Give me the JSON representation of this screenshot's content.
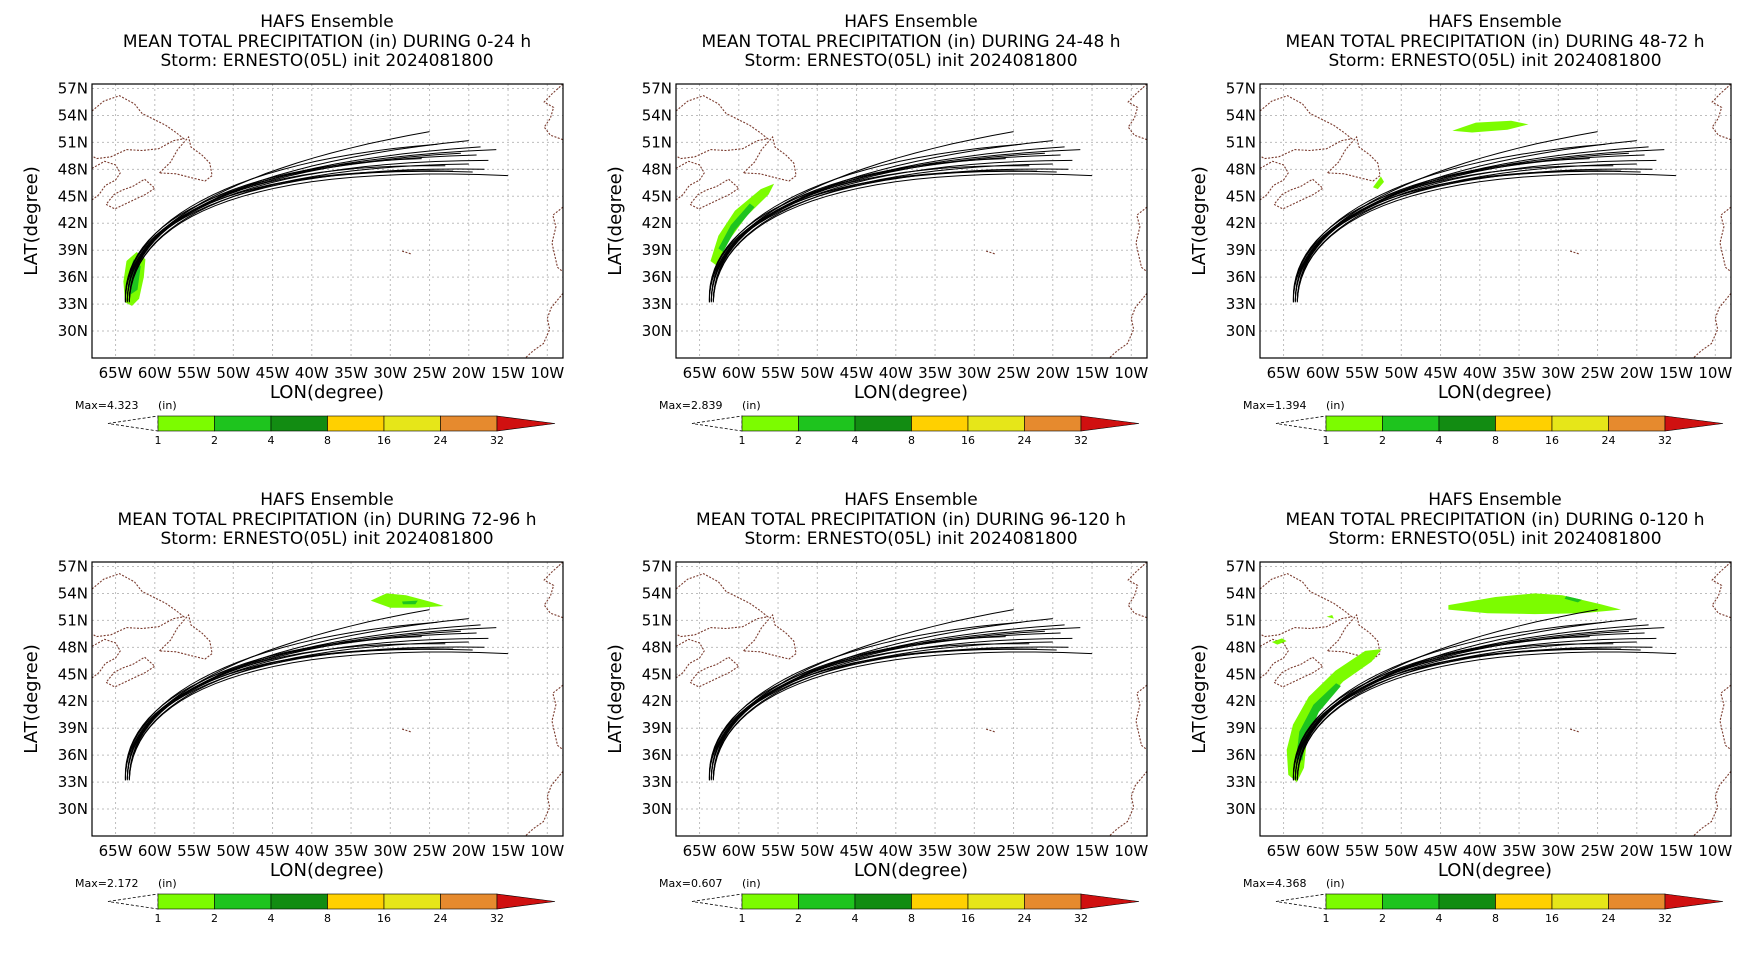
{
  "chart_data": [
    {
      "type": "map",
      "title": "HAFS Ensemble",
      "subtitle": "MEAN TOTAL PRECIPITATION (in) DURING  0-24 h",
      "storm_line": "Storm: ERNESTO(05L) init 2024081800",
      "xlabel": "LON(degree)",
      "ylabel": "LAT(degree)",
      "xlim": [
        -68,
        -8
      ],
      "ylim": [
        27,
        57.5
      ],
      "max_label": "Max=4.323",
      "unit_label": "(in)",
      "precip": [
        {
          "level": 1,
          "lonlat": [
            [
              -63.8,
              33.2
            ],
            [
              -64.0,
              35.5
            ],
            [
              -63.6,
              37.8
            ],
            [
              -62.3,
              38.8
            ],
            [
              -61.2,
              38.0
            ],
            [
              -61.4,
              36.0
            ],
            [
              -62.0,
              33.6
            ],
            [
              -62.9,
              32.8
            ]
          ]
        },
        {
          "level": 2,
          "lonlat": [
            [
              -63.2,
              34.0
            ],
            [
              -63.3,
              36.5
            ],
            [
              -62.7,
              38.0
            ],
            [
              -61.8,
              37.2
            ],
            [
              -62.2,
              34.6
            ]
          ]
        }
      ]
    },
    {
      "type": "map",
      "title": "HAFS Ensemble",
      "subtitle": "MEAN TOTAL PRECIPITATION (in) DURING 24-48 h",
      "storm_line": "Storm: ERNESTO(05L) init 2024081800",
      "xlabel": "LON(degree)",
      "ylabel": "LAT(degree)",
      "xlim": [
        -68,
        -8
      ],
      "ylim": [
        27,
        57.5
      ],
      "max_label": "Max=2.839",
      "unit_label": "(in)",
      "precip": [
        {
          "level": 1,
          "lonlat": [
            [
              -63.6,
              37.8
            ],
            [
              -62.6,
              40.6
            ],
            [
              -60.5,
              43.4
            ],
            [
              -57.2,
              45.8
            ],
            [
              -55.5,
              46.4
            ],
            [
              -56.2,
              45.2
            ],
            [
              -59.0,
              42.8
            ],
            [
              -61.5,
              39.8
            ],
            [
              -62.7,
              37.2
            ]
          ]
        },
        {
          "level": 2,
          "lonlat": [
            [
              -62.6,
              39.2
            ],
            [
              -61.0,
              41.8
            ],
            [
              -58.6,
              44.2
            ],
            [
              -58.0,
              43.8
            ],
            [
              -60.5,
              41.2
            ],
            [
              -62.0,
              38.8
            ]
          ]
        }
      ]
    },
    {
      "type": "map",
      "title": "HAFS Ensemble",
      "subtitle": "MEAN TOTAL PRECIPITATION (in) DURING 48-72 h",
      "storm_line": "Storm: ERNESTO(05L) init 2024081800",
      "xlabel": "LON(degree)",
      "ylabel": "LAT(degree)",
      "xlim": [
        -68,
        -8
      ],
      "ylim": [
        27,
        57.5
      ],
      "max_label": "Max=1.394",
      "unit_label": "(in)",
      "precip": [
        {
          "level": 1,
          "lonlat": [
            [
              -43.5,
              52.3
            ],
            [
              -40.5,
              53.2
            ],
            [
              -36.0,
              53.4
            ],
            [
              -33.8,
              53.0
            ],
            [
              -36.5,
              52.4
            ],
            [
              -41.0,
              52.1
            ]
          ]
        },
        {
          "level": 1,
          "lonlat": [
            [
              -53.6,
              46.0
            ],
            [
              -52.6,
              47.2
            ],
            [
              -52.2,
              46.6
            ],
            [
              -53.0,
              45.8
            ]
          ]
        }
      ]
    },
    {
      "type": "map",
      "title": "HAFS Ensemble",
      "subtitle": "MEAN TOTAL PRECIPITATION (in) DURING 72-96 h",
      "storm_line": "Storm: ERNESTO(05L) init 2024081800",
      "xlabel": "LON(degree)",
      "ylabel": "LAT(degree)",
      "xlim": [
        -68,
        -8
      ],
      "ylim": [
        27,
        57.5
      ],
      "max_label": "Max=2.172",
      "unit_label": "(in)",
      "precip": [
        {
          "level": 1,
          "lonlat": [
            [
              -32.5,
              53.2
            ],
            [
              -30.5,
              54.0
            ],
            [
              -28.0,
              53.8
            ],
            [
              -24.6,
              53.0
            ],
            [
              -23.2,
              52.6
            ],
            [
              -26.5,
              52.4
            ],
            [
              -30.0,
              52.4
            ]
          ]
        },
        {
          "level": 2,
          "lonlat": [
            [
              -28.5,
              53.1
            ],
            [
              -26.5,
              53.2
            ],
            [
              -26.8,
              52.8
            ],
            [
              -28.4,
              52.8
            ]
          ]
        }
      ]
    },
    {
      "type": "map",
      "title": "HAFS Ensemble",
      "subtitle": "MEAN TOTAL PRECIPITATION (in) DURING 96-120 h",
      "storm_line": "Storm: ERNESTO(05L) init 2024081800",
      "xlabel": "LON(degree)",
      "ylabel": "LAT(degree)",
      "xlim": [
        -68,
        -8
      ],
      "ylim": [
        27,
        57.5
      ],
      "max_label": "Max=0.607",
      "unit_label": "(in)",
      "precip": []
    },
    {
      "type": "map",
      "title": "HAFS Ensemble",
      "subtitle": "MEAN TOTAL PRECIPITATION (in) DURING 0-120 h",
      "storm_line": "Storm: ERNESTO(05L) init 2024081800",
      "xlabel": "LON(degree)",
      "ylabel": "LAT(degree)",
      "xlim": [
        -68,
        -8
      ],
      "ylim": [
        27,
        57.5
      ],
      "max_label": "Max=4.368",
      "unit_label": "(in)",
      "precip": [
        {
          "level": 1,
          "lonlat": [
            [
              -44.0,
              52.7
            ],
            [
              -38.0,
              53.6
            ],
            [
              -33.0,
              54.0
            ],
            [
              -29.5,
              53.8
            ],
            [
              -24.6,
              52.8
            ],
            [
              -22.0,
              52.2
            ],
            [
              -27.0,
              51.8
            ],
            [
              -33.0,
              51.7
            ],
            [
              -39.0,
              51.8
            ],
            [
              -44.0,
              52.2
            ]
          ]
        },
        {
          "level": 2,
          "lonlat": [
            [
              -29.0,
              53.7
            ],
            [
              -27.0,
              53.3
            ],
            [
              -27.5,
              53.0
            ],
            [
              -29.2,
              53.4
            ]
          ]
        },
        {
          "level": 1,
          "lonlat": [
            [
              -64.4,
              33.8
            ],
            [
              -64.6,
              36.6
            ],
            [
              -63.8,
              39.4
            ],
            [
              -61.8,
              42.5
            ],
            [
              -58.4,
              45.4
            ],
            [
              -54.6,
              47.6
            ],
            [
              -52.5,
              47.8
            ],
            [
              -53.8,
              46.4
            ],
            [
              -57.4,
              44.2
            ],
            [
              -60.5,
              41.2
            ],
            [
              -62.0,
              38.0
            ],
            [
              -62.4,
              34.6
            ],
            [
              -63.3,
              33.0
            ]
          ]
        },
        {
          "level": 2,
          "lonlat": [
            [
              -63.4,
              35.6
            ],
            [
              -63.0,
              38.6
            ],
            [
              -61.2,
              41.6
            ],
            [
              -58.3,
              44.0
            ],
            [
              -57.7,
              43.7
            ],
            [
              -60.5,
              40.8
            ],
            [
              -62.2,
              37.6
            ],
            [
              -62.6,
              35.4
            ]
          ]
        },
        {
          "level": 1,
          "lonlat": [
            [
              -66.5,
              48.6
            ],
            [
              -65.2,
              49.0
            ],
            [
              -64.6,
              48.7
            ],
            [
              -65.8,
              48.3
            ]
          ]
        },
        {
          "level": 1,
          "lonlat": [
            [
              -59.5,
              51.4
            ],
            [
              -58.8,
              51.6
            ],
            [
              -58.6,
              51.2
            ]
          ]
        }
      ]
    }
  ],
  "colorbar": {
    "labels": [
      "1",
      "2",
      "4",
      "8",
      "16",
      "24",
      "32"
    ],
    "colors": [
      "#7cfc00",
      "#1ec41e",
      "#128c12",
      "#ffd000",
      "#e6e619",
      "#e68a2e",
      "#d01010"
    ]
  },
  "axes": {
    "lat_ticks": [
      "57N",
      "54N",
      "51N",
      "48N",
      "45N",
      "42N",
      "39N",
      "36N",
      "33N",
      "30N"
    ],
    "lat_values": [
      57,
      54,
      51,
      48,
      45,
      42,
      39,
      36,
      33,
      30
    ],
    "lon_ticks": [
      "65W",
      "60W",
      "55W",
      "50W",
      "45W",
      "40W",
      "35W",
      "30W",
      "25W",
      "20W",
      "15W",
      "10W"
    ],
    "lon_values": [
      -65,
      -60,
      -55,
      -50,
      -45,
      -40,
      -35,
      -30,
      -25,
      -20,
      -15,
      -10
    ]
  },
  "tracks": {
    "origin": [
      -63.5,
      33.2
    ],
    "end_points": [
      [
        -25,
        52.2
      ],
      [
        -20,
        51.2
      ],
      [
        -18.5,
        50.5
      ],
      [
        -19,
        49.6
      ],
      [
        -17.5,
        49
      ],
      [
        -20,
        48.6
      ],
      [
        -22,
        47.8
      ],
      [
        -19.5,
        47.7
      ],
      [
        -15,
        47.3
      ],
      [
        -24,
        50.8
      ],
      [
        -21,
        49.8
      ],
      [
        -26,
        49.2
      ],
      [
        -18,
        48
      ],
      [
        -23,
        48.4
      ],
      [
        -16.5,
        50.2
      ]
    ],
    "color": "#000000"
  },
  "coast": {
    "color": "#7a3b2e"
  }
}
